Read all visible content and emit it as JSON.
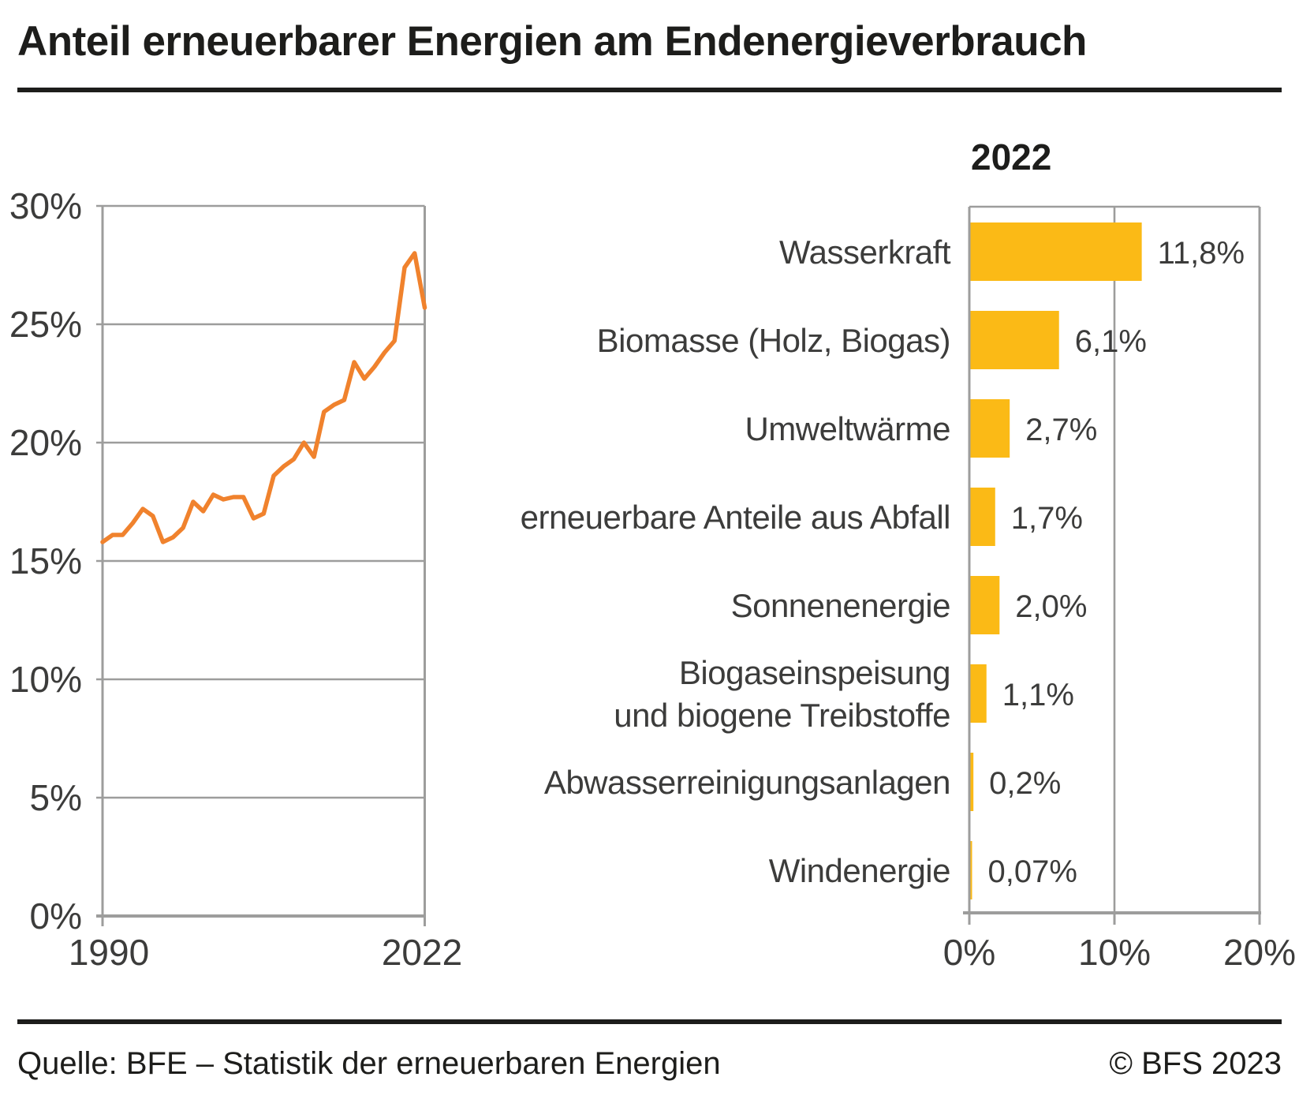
{
  "page": {
    "title": "Anteil erneuerbarer Energien am Endenergieverbrauch",
    "source": "Quelle: BFE – Statistik der erneuerbaren Energien",
    "copyright": "© BFS 2023"
  },
  "colors": {
    "line_orange": "#F0822D",
    "bar_yellow": "#FBBA16",
    "grid_gray": "#9D9D9C",
    "label_gray": "#3C3C3B",
    "near_black": "#1D1D1B"
  },
  "chart_data": [
    {
      "type": "line",
      "title": "",
      "x": [
        1990,
        1991,
        1992,
        1993,
        1994,
        1995,
        1996,
        1997,
        1998,
        1999,
        2000,
        2001,
        2002,
        2003,
        2004,
        2005,
        2006,
        2007,
        2008,
        2009,
        2010,
        2011,
        2012,
        2013,
        2014,
        2015,
        2016,
        2017,
        2018,
        2019,
        2020,
        2021,
        2022
      ],
      "series": [
        {
          "name": "Anteil erneuerbarer Energien",
          "values": [
            15.8,
            16.1,
            16.1,
            16.6,
            17.2,
            16.9,
            15.8,
            16.0,
            16.4,
            17.5,
            17.1,
            17.8,
            17.6,
            17.7,
            17.7,
            16.8,
            17.0,
            18.6,
            19.0,
            19.3,
            20.0,
            19.4,
            21.3,
            21.6,
            21.8,
            23.4,
            22.7,
            23.2,
            23.8,
            24.3,
            27.4,
            28.0,
            25.7
          ]
        }
      ],
      "xlabel": "",
      "ylabel": "",
      "ylim": [
        0,
        30
      ],
      "yticks": [
        "0%",
        "5%",
        "10%",
        "15%",
        "20%",
        "25%",
        "30%"
      ],
      "xticks": [
        "1990",
        "2022"
      ],
      "grid": true,
      "legend": "none"
    },
    {
      "type": "bar",
      "orientation": "horizontal",
      "title": "2022",
      "categories": [
        "Wasserkraft",
        "Biomasse (Holz, Biogas)",
        "Umweltwärme",
        "erneuerbare Anteile aus Abfall",
        "Sonnenenergie",
        "Biogaseinspeisung und biogene Treibstoffe",
        "Abwasserreinigungsanlagen",
        "Windenergie"
      ],
      "category_lines": [
        [
          "Wasserkraft"
        ],
        [
          "Biomasse (Holz, Biogas)"
        ],
        [
          "Umweltwärme"
        ],
        [
          "erneuerbare Anteile aus Abfall"
        ],
        [
          "Sonnenenergie"
        ],
        [
          "Biogaseinspeisung",
          "und biogene Treibstoffe"
        ],
        [
          "Abwasserreinigungsanlagen"
        ],
        [
          "Windenergie"
        ]
      ],
      "values": [
        11.8,
        6.1,
        2.7,
        1.7,
        2.0,
        1.1,
        0.2,
        0.07
      ],
      "value_labels": [
        "11,8%",
        "6,1%",
        "2,7%",
        "1,7%",
        "2,0%",
        "1,1%",
        "0,2%",
        "0,07%"
      ],
      "xlim": [
        0,
        20
      ],
      "xticks": [
        "0%",
        "10%",
        "20%"
      ],
      "grid": true,
      "legend": "none"
    }
  ]
}
